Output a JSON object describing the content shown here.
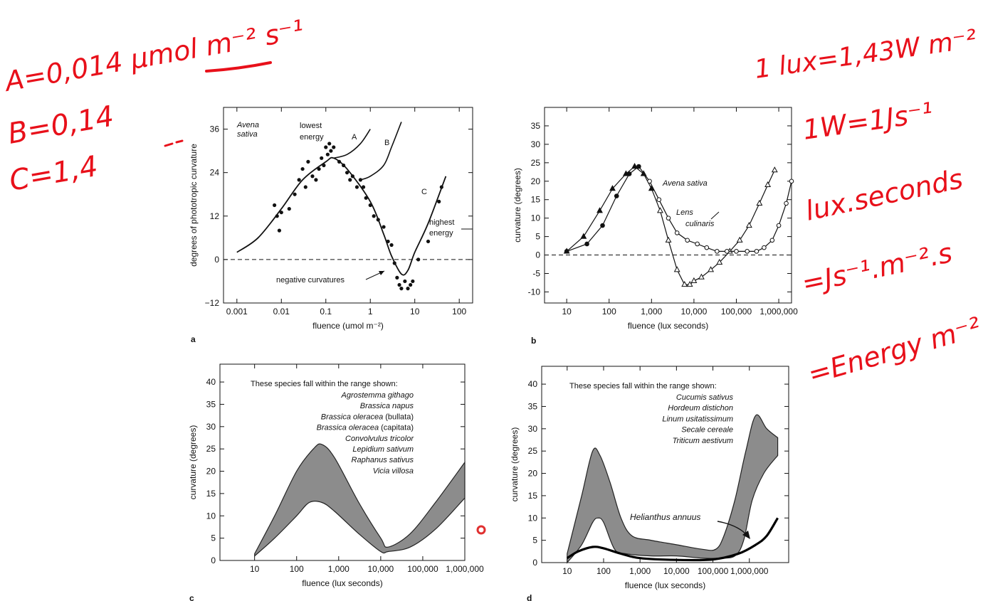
{
  "annotations": {
    "left": [
      "A=0,014 μmol m⁻² s⁻¹",
      "B=0,14",
      "C=1,4"
    ],
    "right": [
      "1 lux=1,43W m⁻²",
      "1W=1Js⁻¹",
      "lux.seconds",
      "=Js⁻¹.m⁻².s",
      "=Energy m⁻²"
    ],
    "ink_color": "#e8101a"
  },
  "chart_data": [
    {
      "panel": "a",
      "type": "scatter",
      "xlabel": "fluence (umol m⁻²)",
      "ylabel": "degrees of phototropic curvature",
      "x_scale": "log",
      "xlim": [
        0.0005,
        200
      ],
      "ylim": [
        -12,
        42
      ],
      "x_ticks": [
        0.001,
        0.01,
        0.1,
        1,
        10,
        100
      ],
      "x_tick_labels": [
        "0.001",
        "0.01",
        "0.1",
        "1",
        "10",
        "100"
      ],
      "y_ticks": [
        -12,
        0,
        12,
        24,
        36
      ],
      "y_tick_labels": [
        "−12",
        "0",
        "12",
        "24",
        "36"
      ],
      "species_label": [
        "Avena",
        "sativa"
      ],
      "text_labels": {
        "lowest": [
          "lowest",
          "energy"
        ],
        "highest": [
          "highest",
          "energy"
        ],
        "negative": "negative curvatures"
      },
      "curve_labels": [
        "A",
        "B",
        "C"
      ],
      "baseline": 0,
      "main_curve": [
        [
          0.001,
          2
        ],
        [
          0.003,
          6
        ],
        [
          0.01,
          14
        ],
        [
          0.03,
          22
        ],
        [
          0.1,
          27
        ],
        [
          0.15,
          28
        ],
        [
          0.3,
          25
        ],
        [
          1,
          16
        ],
        [
          2,
          7
        ],
        [
          3,
          1
        ],
        [
          5,
          -4
        ],
        [
          7,
          -3
        ],
        [
          10,
          2
        ],
        [
          20,
          10
        ],
        [
          50,
          23
        ]
      ],
      "curve_A": [
        [
          0.15,
          28
        ],
        [
          0.3,
          29
        ],
        [
          0.6,
          32
        ],
        [
          1,
          36
        ]
      ],
      "curve_B": [
        [
          0.6,
          22
        ],
        [
          1,
          23
        ],
        [
          2,
          26
        ],
        [
          3,
          31
        ],
        [
          5,
          38
        ]
      ],
      "points": [
        [
          0.007,
          15
        ],
        [
          0.008,
          12
        ],
        [
          0.009,
          8
        ],
        [
          0.01,
          13
        ],
        [
          0.015,
          14
        ],
        [
          0.02,
          18
        ],
        [
          0.025,
          22
        ],
        [
          0.03,
          25
        ],
        [
          0.035,
          20
        ],
        [
          0.04,
          27
        ],
        [
          0.05,
          23
        ],
        [
          0.06,
          22
        ],
        [
          0.07,
          25
        ],
        [
          0.08,
          28
        ],
        [
          0.09,
          26
        ],
        [
          0.1,
          31
        ],
        [
          0.11,
          29
        ],
        [
          0.12,
          32
        ],
        [
          0.13,
          30
        ],
        [
          0.15,
          31
        ],
        [
          0.2,
          27
        ],
        [
          0.25,
          26
        ],
        [
          0.3,
          24
        ],
        [
          0.35,
          22
        ],
        [
          0.4,
          23
        ],
        [
          0.5,
          20
        ],
        [
          0.6,
          22
        ],
        [
          0.7,
          20
        ],
        [
          0.8,
          17
        ],
        [
          1,
          15
        ],
        [
          1.2,
          12
        ],
        [
          1.5,
          11
        ],
        [
          2,
          9
        ],
        [
          2.5,
          5
        ],
        [
          3,
          4
        ],
        [
          3.5,
          -1
        ],
        [
          4,
          -5
        ],
        [
          4.5,
          -7
        ],
        [
          5,
          -8
        ],
        [
          6,
          -6
        ],
        [
          7,
          -8
        ],
        [
          8,
          -7
        ],
        [
          9,
          -6
        ],
        [
          12,
          0
        ],
        [
          20,
          5
        ],
        [
          35,
          16
        ],
        [
          40,
          20
        ]
      ]
    },
    {
      "panel": "b",
      "type": "line",
      "xlabel": "fluence (lux seconds)",
      "ylabel": "curvature (degrees)",
      "x_scale": "log",
      "xlim": [
        3,
        2000000
      ],
      "ylim": [
        -13,
        40
      ],
      "x_ticks": [
        10,
        100,
        1000,
        10000,
        100000,
        1000000
      ],
      "x_tick_labels": [
        "10",
        "100",
        "1,000",
        "10,000",
        "100,000",
        "1,000,000"
      ],
      "y_ticks": [
        -10,
        -5,
        0,
        5,
        10,
        15,
        20,
        25,
        30,
        35
      ],
      "y_tick_labels": [
        "-10",
        "-5",
        "0",
        "5",
        "10",
        "15",
        "20",
        "25",
        "30",
        "35"
      ],
      "baseline": 0,
      "labels": [
        [
          "Avena sativa"
        ],
        [
          "Lens",
          "culinaris"
        ]
      ],
      "series": [
        {
          "name": "Avena sativa",
          "marker": "triangle",
          "x": [
            10,
            25,
            60,
            120,
            250,
            400,
            650,
            1000,
            1600,
            2500,
            4000,
            6000,
            8000,
            10000,
            15000,
            25000,
            40000,
            70000,
            120000,
            200000,
            350000,
            550000,
            800000
          ],
          "y": [
            1,
            5,
            12,
            18,
            22,
            24,
            22,
            18,
            12,
            4,
            -4,
            -8,
            -8,
            -7,
            -6,
            -4,
            -2,
            1,
            4,
            8,
            14,
            19,
            23
          ]
        },
        {
          "name": "Lens culinaris",
          "marker": "circle",
          "x": [
            10,
            30,
            70,
            150,
            300,
            500,
            900,
            1500,
            2500,
            4000,
            7000,
            12000,
            20000,
            35000,
            60000,
            100000,
            180000,
            300000,
            450000,
            700000,
            1000000,
            1500000,
            2000000
          ],
          "y": [
            1,
            3,
            8,
            16,
            22,
            24,
            20,
            15,
            10,
            6,
            4,
            3,
            2,
            1,
            1,
            1,
            1,
            1,
            2,
            4,
            8,
            14,
            20
          ]
        }
      ]
    },
    {
      "panel": "c",
      "type": "area",
      "xlabel": "fluence (lux seconds)",
      "ylabel": "curvature (degrees)",
      "x_scale": "log",
      "xlim": [
        1.5,
        1000000
      ],
      "ylim": [
        0,
        44
      ],
      "x_ticks": [
        10,
        100,
        1000,
        10000,
        100000,
        1000000
      ],
      "x_tick_labels": [
        "10",
        "100",
        "1,000",
        "10,000",
        "100,000",
        "1,000,000"
      ],
      "y_ticks": [
        0,
        5,
        10,
        15,
        20,
        25,
        30,
        35,
        40
      ],
      "y_tick_labels": [
        "0",
        "5",
        "10",
        "15",
        "20",
        "25",
        "30",
        "35",
        "40"
      ],
      "species_heading": "These species fall within the range shown:",
      "species": [
        {
          "name": "Agrostemma githago",
          "suffix": ""
        },
        {
          "name": "Brassica napus",
          "suffix": ""
        },
        {
          "name": "Brassica oleracea",
          "suffix": " (bullata)"
        },
        {
          "name": "Brassica oleracea",
          "suffix": " (capitata)"
        },
        {
          "name": "Convolvulus tricolor",
          "suffix": ""
        },
        {
          "name": "Lepidium sativum",
          "suffix": ""
        },
        {
          "name": "Raphanus sativus",
          "suffix": ""
        },
        {
          "name": "Vicia villosa",
          "suffix": ""
        }
      ],
      "band_upper": [
        [
          10,
          1.5
        ],
        [
          30,
          10
        ],
        [
          100,
          20
        ],
        [
          250,
          25
        ],
        [
          400,
          26
        ],
        [
          800,
          23
        ],
        [
          3000,
          13
        ],
        [
          10000,
          5
        ],
        [
          15000,
          3
        ],
        [
          50000,
          6
        ],
        [
          200000,
          13
        ],
        [
          1000000,
          22
        ]
      ],
      "band_lower": [
        [
          10,
          1
        ],
        [
          30,
          5
        ],
        [
          100,
          10
        ],
        [
          200,
          13
        ],
        [
          400,
          13
        ],
        [
          800,
          11
        ],
        [
          3000,
          6
        ],
        [
          10000,
          2
        ],
        [
          15000,
          2
        ],
        [
          50000,
          3
        ],
        [
          200000,
          7
        ],
        [
          1000000,
          14
        ]
      ]
    },
    {
      "panel": "d",
      "type": "area",
      "xlabel": "fluence (lux seconds)",
      "ylabel": "curvature (degrees)",
      "x_scale": "log",
      "xlim": [
        2,
        12000000
      ],
      "ylim": [
        0,
        44
      ],
      "x_ticks": [
        10,
        100,
        1000,
        10000,
        100000,
        1000000
      ],
      "x_tick_labels": [
        "10",
        "100",
        "1,000",
        "10,000",
        "100,000",
        "1,000,000"
      ],
      "y_ticks": [
        0,
        5,
        10,
        15,
        20,
        25,
        30,
        35,
        40
      ],
      "y_tick_labels": [
        "0",
        "5",
        "10",
        "15",
        "20",
        "25",
        "30",
        "35",
        "40"
      ],
      "species_heading": "These species fall within the range shown:",
      "species": [
        "Cucumis sativus",
        "Hordeum distichon",
        "Linum usitatissimum",
        "Secale cereale",
        "Triticum aestivum"
      ],
      "band_upper": [
        [
          10,
          2
        ],
        [
          25,
          15
        ],
        [
          50,
          25
        ],
        [
          80,
          24
        ],
        [
          150,
          18
        ],
        [
          300,
          10
        ],
        [
          600,
          6
        ],
        [
          2000,
          5
        ],
        [
          10000,
          4
        ],
        [
          50000,
          3
        ],
        [
          120000,
          3
        ],
        [
          200000,
          6
        ],
        [
          400000,
          14
        ],
        [
          800000,
          25
        ],
        [
          1500000,
          33
        ],
        [
          3000000,
          30
        ],
        [
          6000000,
          28
        ]
      ],
      "band_lower": [
        [
          10,
          0
        ],
        [
          25,
          4
        ],
        [
          50,
          9
        ],
        [
          70,
          10
        ],
        [
          100,
          9
        ],
        [
          200,
          3
        ],
        [
          400,
          2
        ],
        [
          2000,
          1.5
        ],
        [
          10000,
          1.5
        ],
        [
          50000,
          1
        ],
        [
          150000,
          1
        ],
        [
          400000,
          1.5
        ],
        [
          700000,
          5
        ],
        [
          1200000,
          14
        ],
        [
          2500000,
          20
        ],
        [
          6000000,
          24
        ]
      ],
      "helianthus_label": "Helianthus annuus",
      "helianthus": [
        [
          10,
          1
        ],
        [
          20,
          2.5
        ],
        [
          50,
          3.5
        ],
        [
          100,
          3.2
        ],
        [
          300,
          2
        ],
        [
          1000,
          1
        ],
        [
          10000,
          0.6
        ],
        [
          100000,
          0.7
        ],
        [
          500000,
          2
        ],
        [
          1500000,
          4
        ],
        [
          3000000,
          6
        ],
        [
          6000000,
          10
        ]
      ]
    }
  ],
  "panel_letters": [
    "a",
    "b",
    "c",
    "d"
  ],
  "cursor_color": "#e03030"
}
